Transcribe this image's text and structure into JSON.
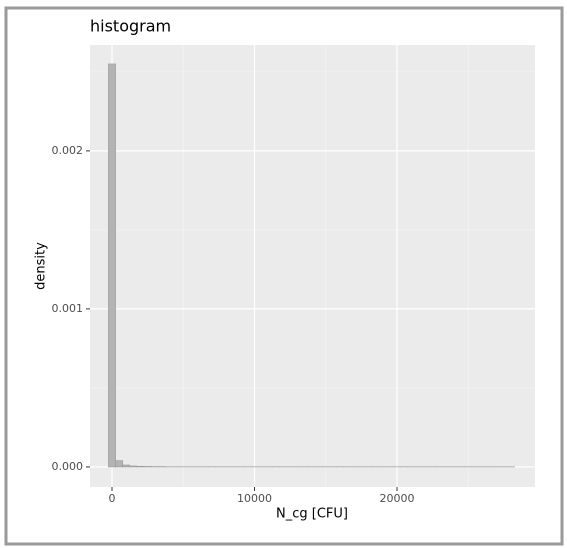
{
  "chart_data": {
    "type": "histogram",
    "title": "histogram",
    "xlabel": "N_cg [CFU]",
    "ylabel": "density",
    "bins": [
      -250,
      250,
      750,
      1250,
      1750,
      2250,
      2750,
      3250,
      3750,
      4250,
      4750,
      5250,
      5750,
      6250,
      6750,
      7250,
      7750,
      8250,
      8750,
      9250,
      9750,
      10250,
      10750,
      11250,
      11750,
      12250,
      12750,
      13250,
      13750,
      14250,
      14750,
      15250,
      15750,
      16250,
      16750,
      17250,
      17750,
      18250,
      18750,
      19250,
      19750,
      20250,
      20750,
      21250,
      21750,
      22250,
      22750,
      23250,
      23750,
      24250,
      24750,
      25250,
      25750,
      26250,
      26750,
      27250,
      27750,
      28250
    ],
    "values": [
      0.00255,
      4e-05,
      1.2e-05,
      6e-06,
      4e-06,
      3e-06,
      2e-06,
      2e-06,
      1e-06,
      1e-06,
      1e-06,
      1e-06,
      1e-06,
      1e-06,
      1e-06,
      1e-06,
      1e-06,
      1e-06,
      1e-06,
      1e-06,
      1e-06,
      1e-06,
      1e-06,
      1e-06,
      1e-06,
      1e-06,
      1e-06,
      1e-06,
      1e-06,
      1e-06,
      1e-06,
      1e-06,
      1e-06,
      1e-06,
      1e-06,
      1e-06,
      1e-06,
      1e-06,
      1e-06,
      1e-06,
      1e-06,
      1e-06,
      1e-06,
      1e-06,
      1e-06,
      1e-06,
      1e-06,
      1e-06,
      1e-06,
      1e-06,
      1e-06,
      1e-06,
      1e-06,
      1e-06,
      1e-06,
      1e-06,
      1e-06
    ],
    "color": "#b3b3b3",
    "xlim": [
      -1544,
      29684
    ],
    "xticks": [
      0,
      10000,
      20000
    ],
    "x_minor_ticks": [
      5000,
      15000,
      25000
    ],
    "ylim": [
      -0.000127,
      0.00267
    ],
    "yticks": [
      {
        "value": 0,
        "label": "0.000"
      },
      {
        "value": 0.001,
        "label": "0.001"
      },
      {
        "value": 0.002,
        "label": "0.002"
      }
    ],
    "y_minor_ticks": [
      0.0005,
      0.0015,
      0.0025
    ],
    "grid": true
  }
}
